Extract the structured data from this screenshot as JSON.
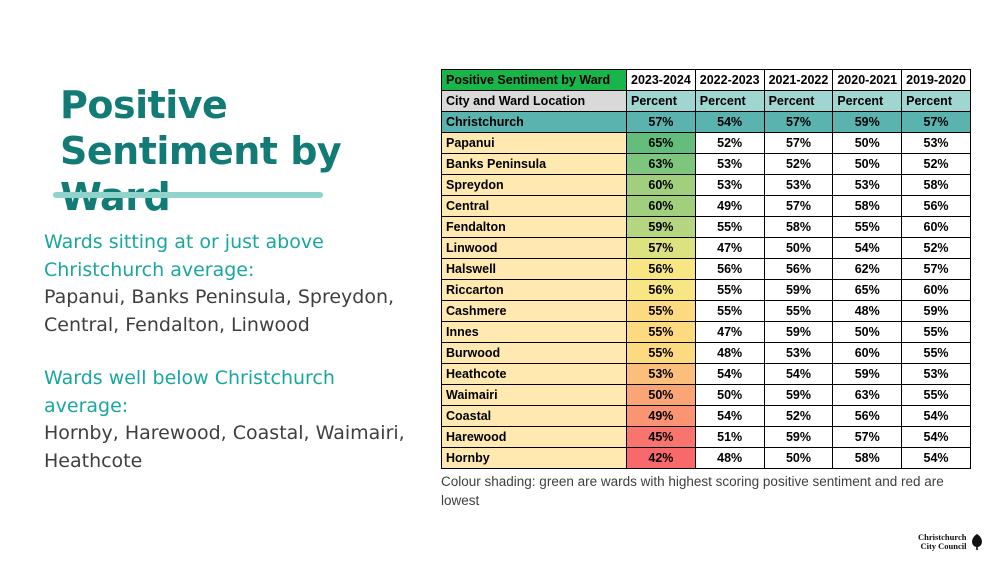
{
  "title": "Positive Sentiment by Ward",
  "body": {
    "heading1": "Wards sitting at or just above Christchurch average:",
    "list1": "Papanui, Banks Peninsula, Spreydon, Central, Fendalton, Linwood",
    "heading2": "Wards well below Christchurch average:",
    "list2": "Hornby, Harewood, Coastal, Waimairi, Heathcote"
  },
  "table": {
    "header": [
      "Positive Sentiment by Ward",
      "2023-2024",
      "2022-2023",
      "2021-2022",
      "2020-2021",
      "2019-2020"
    ],
    "subheader": [
      "City and Ward Location",
      "Percent",
      "Percent",
      "Percent",
      "Percent",
      "Percent"
    ],
    "rows": [
      {
        "name": "Christchurch",
        "values": [
          "57%",
          "54%",
          "57%",
          "59%",
          "57%"
        ],
        "color": "#5bb3b0"
      },
      {
        "name": "Papanui",
        "values": [
          "65%",
          "52%",
          "57%",
          "50%",
          "53%"
        ],
        "color": "#63be7b"
      },
      {
        "name": "Banks Peninsula",
        "values": [
          "63%",
          "53%",
          "52%",
          "50%",
          "52%"
        ],
        "color": "#7ec57d"
      },
      {
        "name": "Spreydon",
        "values": [
          "60%",
          "53%",
          "53%",
          "53%",
          "58%"
        ],
        "color": "#a2cf7e"
      },
      {
        "name": "Central",
        "values": [
          "60%",
          "49%",
          "57%",
          "58%",
          "56%"
        ],
        "color": "#a2cf7e"
      },
      {
        "name": "Fendalton",
        "values": [
          "59%",
          "55%",
          "58%",
          "55%",
          "60%"
        ],
        "color": "#b5d580"
      },
      {
        "name": "Linwood",
        "values": [
          "57%",
          "47%",
          "50%",
          "54%",
          "52%"
        ],
        "color": "#dde281"
      },
      {
        "name": "Halswell",
        "values": [
          "56%",
          "56%",
          "56%",
          "62%",
          "57%"
        ],
        "color": "#f7e683"
      },
      {
        "name": "Riccarton",
        "values": [
          "56%",
          "55%",
          "59%",
          "65%",
          "60%"
        ],
        "color": "#f7e683"
      },
      {
        "name": "Cashmere",
        "values": [
          "55%",
          "55%",
          "55%",
          "48%",
          "59%"
        ],
        "color": "#fdd97f"
      },
      {
        "name": "Innes",
        "values": [
          "55%",
          "47%",
          "59%",
          "50%",
          "55%"
        ],
        "color": "#fdd97f"
      },
      {
        "name": "Burwood",
        "values": [
          "55%",
          "48%",
          "53%",
          "60%",
          "55%"
        ],
        "color": "#fdd97f"
      },
      {
        "name": "Heathcote",
        "values": [
          "53%",
          "54%",
          "54%",
          "59%",
          "53%"
        ],
        "color": "#fcbf7b"
      },
      {
        "name": "Waimairi",
        "values": [
          "50%",
          "50%",
          "59%",
          "63%",
          "55%"
        ],
        "color": "#fba576"
      },
      {
        "name": "Coastal",
        "values": [
          "49%",
          "54%",
          "52%",
          "56%",
          "54%"
        ],
        "color": "#fa9473"
      },
      {
        "name": "Harewood",
        "values": [
          "45%",
          "51%",
          "59%",
          "57%",
          "54%"
        ],
        "color": "#f8746d"
      },
      {
        "name": "Hornby",
        "values": [
          "42%",
          "48%",
          "50%",
          "58%",
          "54%"
        ],
        "color": "#f8696b"
      }
    ]
  },
  "caption": "Colour shading: green are wards with highest scoring positive sentiment and red are lowest",
  "logo": {
    "line1": "Christchurch",
    "line2": "City Council",
    "icon": "ccc-leaf-icon"
  }
}
